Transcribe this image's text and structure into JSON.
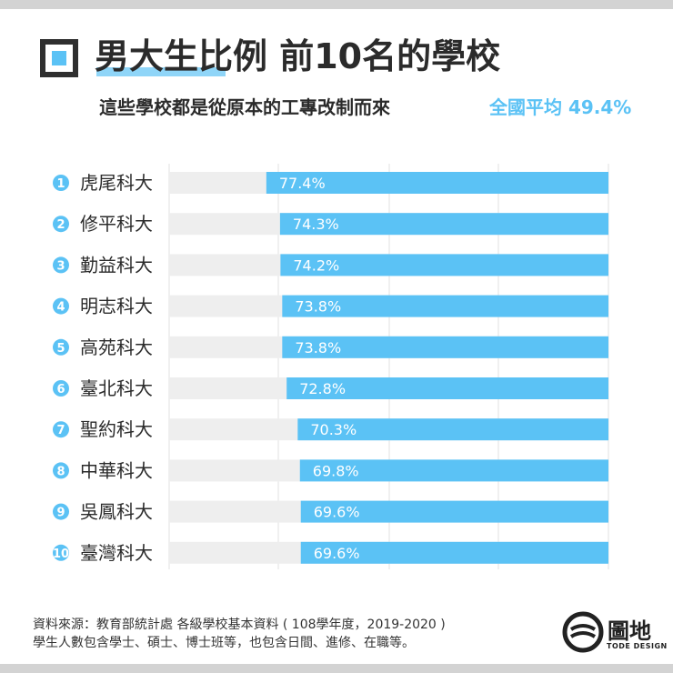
{
  "header": {
    "title": "男大生比例 前10名的學校",
    "subtitle": "這些學校都是從原本的工專改制而來",
    "national_average": "全國平均 49.4%"
  },
  "chart_data": {
    "type": "bar",
    "orientation": "horizontal",
    "title": "男大生比例 前10名的學校",
    "subtitle": "這些學校都是從原本的工專改制而來",
    "ranks": [
      "1",
      "2",
      "3",
      "4",
      "5",
      "6",
      "7",
      "8",
      "9",
      "10"
    ],
    "categories": [
      "虎尾科大",
      "修平科大",
      "勤益科大",
      "明志科大",
      "高苑科大",
      "臺北科大",
      "聖約科大",
      "中華科大",
      "吳鳳科大",
      "臺灣科大"
    ],
    "values": [
      77.4,
      74.3,
      74.2,
      73.8,
      73.8,
      72.8,
      70.3,
      69.8,
      69.6,
      69.6
    ],
    "value_labels": [
      "77.4%",
      "74.3%",
      "74.2%",
      "73.8%",
      "73.8%",
      "72.8%",
      "70.3%",
      "69.8%",
      "69.6%",
      "69.6%"
    ],
    "xlim": [
      0,
      100
    ],
    "grid": true,
    "annotation": "全國平均 49.4%",
    "colors": {
      "bar": "#5bc2f5",
      "track": "#eeeeee",
      "rank_circle": "#5bc2f5",
      "grid": "#e2e2e2"
    }
  },
  "footer": {
    "source_line1": "資料來源：教育部統計處 各級學校基本資料 ( 108學年度，2019-2020 )",
    "source_line2": "學生人數包含學士、碩士、博士班等，也包含日間、進修、在職等。"
  },
  "logo": {
    "name": "圖地",
    "sub": "TODE DESIGN",
    "icon": "globe-logo-icon"
  }
}
